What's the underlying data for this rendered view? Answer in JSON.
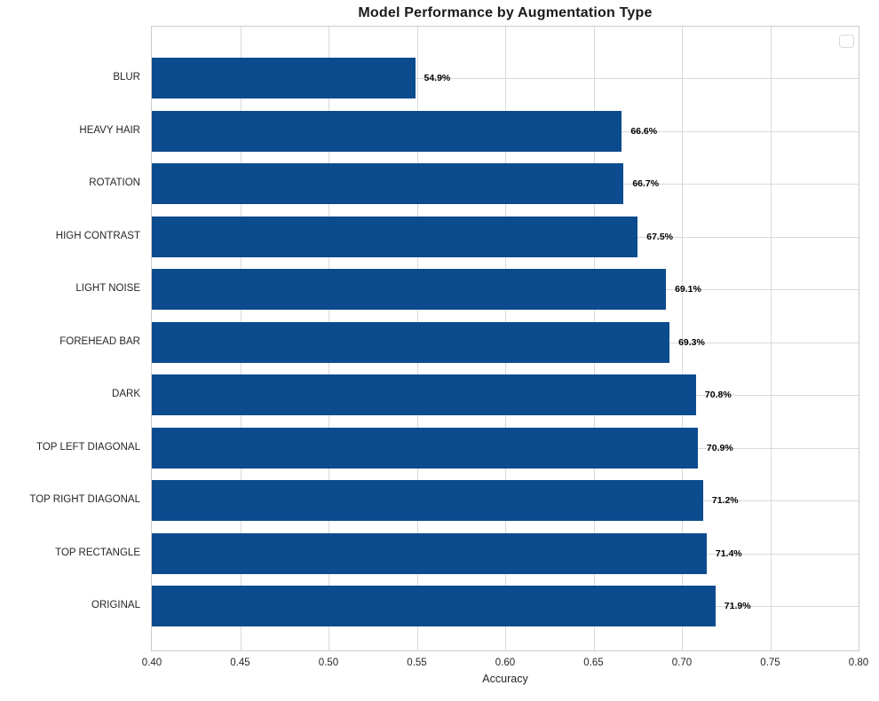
{
  "chart_data": {
    "type": "bar",
    "orientation": "horizontal",
    "title": "Model Performance by Augmentation Type",
    "xlabel": "Accuracy",
    "ylabel": "",
    "xlim": [
      0.4,
      0.8
    ],
    "x_ticks": [
      "0.40",
      "0.45",
      "0.50",
      "0.55",
      "0.60",
      "0.65",
      "0.70",
      "0.75",
      "0.80"
    ],
    "grid": true,
    "legend_position": "upper right",
    "legend_entries": [],
    "categories": [
      "BLUR",
      "HEAVY HAIR",
      "ROTATION",
      "HIGH CONTRAST",
      "LIGHT NOISE",
      "FOREHEAD BAR",
      "DARK",
      "TOP LEFT DIAGONAL",
      "TOP RIGHT DIAGONAL",
      "TOP RECTANGLE",
      "ORIGINAL"
    ],
    "values": [
      0.549,
      0.666,
      0.667,
      0.675,
      0.691,
      0.693,
      0.708,
      0.709,
      0.712,
      0.714,
      0.719
    ],
    "value_labels": [
      "54.9%",
      "66.6%",
      "66.7%",
      "67.5%",
      "69.1%",
      "69.3%",
      "70.8%",
      "70.9%",
      "71.2%",
      "71.4%",
      "71.9%"
    ],
    "colors": {
      "bar": "#0d4b8f",
      "grid": "#d9d9d9",
      "spine": "#cccccc",
      "title_text": "#1a1a1a",
      "tick_text": "#262626",
      "value_text": "#000000"
    }
  }
}
